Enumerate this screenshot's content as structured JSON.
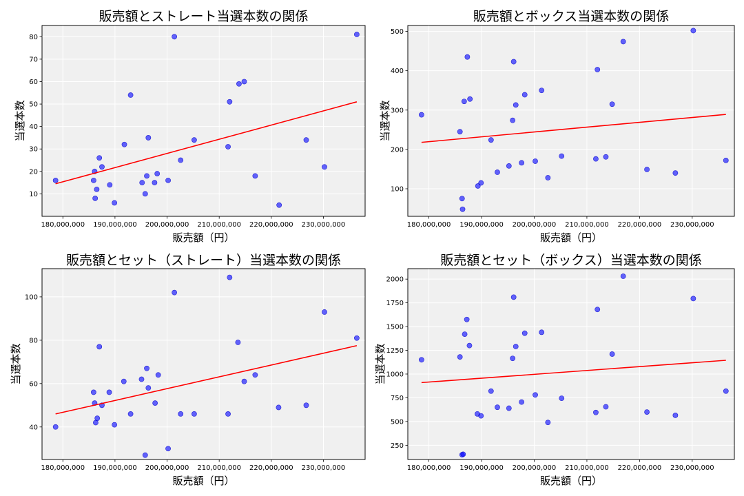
{
  "figure": {
    "background": "#ffffff",
    "plot_background": "#f0f0f0",
    "point_color": "#0000ff",
    "trend_color": "#ff0000"
  },
  "chart_data": [
    {
      "id": "straight",
      "type": "scatter",
      "title": "販売額とストレート当選本数の関係",
      "xlabel": "販売額（円）",
      "ylabel": "当選本数",
      "xlim": [
        176000000,
        238000000
      ],
      "ylim": [
        0,
        85
      ],
      "xticks": [
        180000000,
        190000000,
        200000000,
        210000000,
        220000000,
        230000000
      ],
      "xtick_labels": [
        "180,000,000",
        "190,000,000",
        "200,000,000",
        "210,000,000",
        "220,000,000",
        "230,000,000"
      ],
      "yticks": [
        10,
        20,
        30,
        40,
        50,
        60,
        70,
        80
      ],
      "ytick_labels": [
        "10",
        "20",
        "30",
        "40",
        "50",
        "60",
        "70",
        "80"
      ],
      "points": [
        [
          178600000,
          16
        ],
        [
          185900000,
          16
        ],
        [
          186100000,
          20
        ],
        [
          186200000,
          8
        ],
        [
          186500000,
          12
        ],
        [
          187000000,
          26
        ],
        [
          187500000,
          22
        ],
        [
          189000000,
          14
        ],
        [
          189900000,
          6
        ],
        [
          191800000,
          32
        ],
        [
          193000000,
          54
        ],
        [
          195200000,
          15
        ],
        [
          195800000,
          10
        ],
        [
          196100000,
          18
        ],
        [
          196400000,
          35
        ],
        [
          197600000,
          15
        ],
        [
          198100000,
          19
        ],
        [
          200200000,
          16
        ],
        [
          201400000,
          80
        ],
        [
          202600000,
          25
        ],
        [
          205200000,
          34
        ],
        [
          211700000,
          31
        ],
        [
          212000000,
          51
        ],
        [
          213800000,
          59
        ],
        [
          214800000,
          60
        ],
        [
          216900000,
          18
        ],
        [
          221500000,
          5
        ],
        [
          226700000,
          34
        ],
        [
          230200000,
          22
        ],
        [
          236400000,
          81
        ]
      ],
      "trendline": [
        [
          178600000,
          14.5
        ],
        [
          236400000,
          51
        ]
      ]
    },
    {
      "id": "box",
      "type": "scatter",
      "title": "販売額とボックス当選本数の関係",
      "xlabel": "販売額（円）",
      "ylabel": "当選本数",
      "xlim": [
        176000000,
        238000000
      ],
      "ylim": [
        30,
        515
      ],
      "xticks": [
        180000000,
        190000000,
        200000000,
        210000000,
        220000000,
        230000000
      ],
      "xtick_labels": [
        "180,000,000",
        "190,000,000",
        "200,000,000",
        "210,000,000",
        "220,000,000",
        "230,000,000"
      ],
      "yticks": [
        100,
        200,
        300,
        400,
        500
      ],
      "ytick_labels": [
        "100",
        "200",
        "300",
        "400",
        "500"
      ],
      "points": [
        [
          178600000,
          288
        ],
        [
          185900000,
          245
        ],
        [
          186300000,
          75
        ],
        [
          186400000,
          48
        ],
        [
          186700000,
          322
        ],
        [
          187300000,
          435
        ],
        [
          187800000,
          328
        ],
        [
          189300000,
          107
        ],
        [
          189900000,
          115
        ],
        [
          191800000,
          224
        ],
        [
          193000000,
          142
        ],
        [
          195200000,
          158
        ],
        [
          195900000,
          274
        ],
        [
          196100000,
          423
        ],
        [
          196500000,
          313
        ],
        [
          197600000,
          166
        ],
        [
          198200000,
          339
        ],
        [
          200200000,
          170
        ],
        [
          201400000,
          350
        ],
        [
          202600000,
          128
        ],
        [
          205200000,
          183
        ],
        [
          211700000,
          176
        ],
        [
          212000000,
          403
        ],
        [
          213600000,
          181
        ],
        [
          214800000,
          315
        ],
        [
          216900000,
          474
        ],
        [
          221400000,
          149
        ],
        [
          226800000,
          140
        ],
        [
          230200000,
          502
        ],
        [
          236400000,
          172
        ]
      ],
      "trendline": [
        [
          178600000,
          218
        ],
        [
          236400000,
          289
        ]
      ]
    },
    {
      "id": "set-straight",
      "type": "scatter",
      "title": "販売額とセット（ストレート）当選本数の関係",
      "xlabel": "販売額（円）",
      "ylabel": "当選本数",
      "xlim": [
        176000000,
        238000000
      ],
      "ylim": [
        25,
        113
      ],
      "xticks": [
        180000000,
        190000000,
        200000000,
        210000000,
        220000000,
        230000000
      ],
      "xtick_labels": [
        "180,000,000",
        "190,000,000",
        "200,000,000",
        "210,000,000",
        "220,000,000",
        "230,000,000"
      ],
      "yticks": [
        40,
        60,
        80,
        100
      ],
      "ytick_labels": [
        "40",
        "60",
        "80",
        "100"
      ],
      "points": [
        [
          178600000,
          40
        ],
        [
          185900000,
          56
        ],
        [
          186100000,
          51
        ],
        [
          186300000,
          42
        ],
        [
          186600000,
          44
        ],
        [
          187000000,
          77
        ],
        [
          187500000,
          50
        ],
        [
          188900000,
          56
        ],
        [
          189900000,
          41
        ],
        [
          191700000,
          61
        ],
        [
          193000000,
          46
        ],
        [
          195100000,
          62
        ],
        [
          195800000,
          27
        ],
        [
          196100000,
          67
        ],
        [
          196400000,
          58
        ],
        [
          197700000,
          51
        ],
        [
          198300000,
          64
        ],
        [
          200200000,
          30
        ],
        [
          201400000,
          102
        ],
        [
          202600000,
          46
        ],
        [
          205200000,
          46
        ],
        [
          211700000,
          46
        ],
        [
          212000000,
          109
        ],
        [
          213600000,
          79
        ],
        [
          214800000,
          61
        ],
        [
          216900000,
          64
        ],
        [
          221400000,
          49
        ],
        [
          226700000,
          50
        ],
        [
          230200000,
          93
        ],
        [
          236400000,
          81
        ]
      ],
      "trendline": [
        [
          178600000,
          46
        ],
        [
          236400000,
          77.5
        ]
      ]
    },
    {
      "id": "set-box",
      "type": "scatter",
      "title": "販売額とセット（ボックス）当選本数の関係",
      "xlabel": "販売額（円）",
      "ylabel": "当選本数",
      "xlim": [
        176000000,
        238000000
      ],
      "ylim": [
        100,
        2110
      ],
      "xticks": [
        180000000,
        190000000,
        200000000,
        210000000,
        220000000,
        230000000
      ],
      "xtick_labels": [
        "180,000,000",
        "190,000,000",
        "200,000,000",
        "210,000,000",
        "220,000,000",
        "230,000,000"
      ],
      "yticks": [
        250,
        500,
        750,
        1000,
        1250,
        1500,
        1750,
        2000
      ],
      "ytick_labels": [
        "250",
        "500",
        "750",
        "1000",
        "1250",
        "1500",
        "1750",
        "2000"
      ],
      "points": [
        [
          178600000,
          1150
        ],
        [
          185900000,
          1180
        ],
        [
          186300000,
          150
        ],
        [
          186500000,
          155
        ],
        [
          186800000,
          1420
        ],
        [
          187200000,
          1575
        ],
        [
          187700000,
          1300
        ],
        [
          189200000,
          580
        ],
        [
          189900000,
          560
        ],
        [
          191800000,
          820
        ],
        [
          193000000,
          650
        ],
        [
          195200000,
          640
        ],
        [
          195900000,
          1165
        ],
        [
          196100000,
          1810
        ],
        [
          196500000,
          1290
        ],
        [
          197600000,
          705
        ],
        [
          198200000,
          1430
        ],
        [
          200200000,
          780
        ],
        [
          201400000,
          1440
        ],
        [
          202600000,
          490
        ],
        [
          205200000,
          745
        ],
        [
          211700000,
          595
        ],
        [
          212000000,
          1680
        ],
        [
          213600000,
          655
        ],
        [
          214800000,
          1210
        ],
        [
          216900000,
          2030
        ],
        [
          221400000,
          600
        ],
        [
          226800000,
          565
        ],
        [
          230200000,
          1795
        ],
        [
          236400000,
          820
        ]
      ],
      "trendline": [
        [
          178600000,
          910
        ],
        [
          236400000,
          1145
        ]
      ]
    }
  ]
}
